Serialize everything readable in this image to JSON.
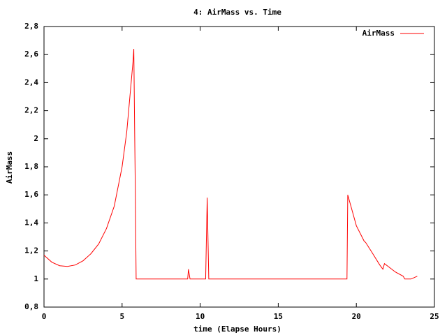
{
  "chart_data": {
    "type": "line",
    "title": "4: AirMass vs. Time",
    "x_label": "time (Elapse Hours)",
    "y_label": "AirMass",
    "legend": "top-right",
    "xlim": [
      0,
      25
    ],
    "ylim": [
      0.8,
      2.8
    ],
    "xticks": [
      0,
      5,
      10,
      15,
      20,
      25
    ],
    "yticks": [
      {
        "value": 0.8,
        "label": "0,8"
      },
      1,
      {
        "value": 1.2,
        "label": "1,2"
      },
      {
        "value": 1.4,
        "label": "1,4"
      },
      {
        "value": 1.6,
        "label": "1,6"
      },
      {
        "value": 1.8,
        "label": "1,8"
      },
      2,
      {
        "value": 2.2,
        "label": "2,2"
      },
      {
        "value": 2.4,
        "label": "2,4"
      },
      {
        "value": 2.6,
        "label": "2,6"
      },
      {
        "value": 2.8,
        "label": "2,8"
      }
    ],
    "x": [
      0,
      0.5,
      1,
      1.5,
      2,
      2.5,
      3,
      3.5,
      4,
      4.5,
      5,
      5.3,
      5.5,
      5.7,
      5.75,
      5.8,
      5.85,
      5.9,
      9.2,
      9.25,
      9.35,
      10.35,
      10.45,
      10.55,
      19.4,
      19.45,
      19.7,
      20,
      20.5,
      20.6,
      21,
      21.5,
      21.7,
      21.8,
      22.5,
      23,
      23.1,
      23.5,
      23.9
    ],
    "series": [
      {
        "name": "AirMass",
        "color": "#ff0000",
        "values": [
          1.17,
          1.12,
          1.095,
          1.09,
          1.1,
          1.13,
          1.18,
          1.25,
          1.36,
          1.52,
          1.8,
          2.05,
          2.3,
          2.55,
          2.64,
          2.1,
          1.6,
          1.0,
          1.0,
          1.07,
          1.0,
          1.0,
          1.58,
          1.0,
          1.0,
          1.6,
          1.5,
          1.38,
          1.27,
          1.26,
          1.19,
          1.1,
          1.07,
          1.11,
          1.05,
          1.02,
          1.0,
          1.0,
          1.02
        ]
      }
    ]
  }
}
